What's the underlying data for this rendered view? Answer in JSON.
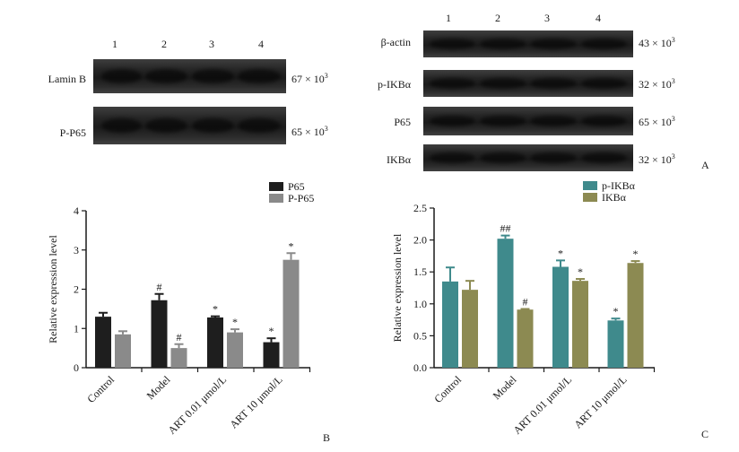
{
  "blot_left": {
    "lanes": [
      "1",
      "2",
      "3",
      "4"
    ],
    "rows": [
      {
        "label": "Lamin B",
        "mw": "67 × 10",
        "exp": "3"
      },
      {
        "label": "P-P65",
        "mw": "65 × 10",
        "exp": "3"
      }
    ]
  },
  "blot_right": {
    "lanes": [
      "1",
      "2",
      "3",
      "4"
    ],
    "rows": [
      {
        "label": "β-actin",
        "mw": "43 × 10",
        "exp": "3"
      },
      {
        "label": "p-IKBα",
        "mw": "32 × 10",
        "exp": "3"
      },
      {
        "label": "P65",
        "mw": "65 × 10",
        "exp": "3"
      },
      {
        "label": "IKBα",
        "mw": "32 × 10",
        "exp": "3"
      }
    ],
    "panel_letter": "A"
  },
  "colors": {
    "p65": "#1e1e1e",
    "pp65": "#8a8a8a",
    "pikba": "#3f8a8c",
    "ikba": "#8c8a52"
  },
  "chart_data": [
    {
      "type": "bar",
      "panel_letter": "B",
      "ylabel": "Relative expression level",
      "categories": [
        "Control",
        "Model",
        "ART 0.01 μmol/L",
        "ART 10 μmol/L"
      ],
      "ylim": [
        0,
        4
      ],
      "yticks": [
        "0",
        "1",
        "2",
        "3",
        "4"
      ],
      "legend_position": "top-right",
      "series": [
        {
          "name": "P65",
          "values": [
            1.3,
            1.72,
            1.28,
            0.65
          ],
          "errors": [
            0.1,
            0.16,
            0.03,
            0.1
          ],
          "marks": [
            "",
            "#",
            "*",
            "*"
          ]
        },
        {
          "name": "P-P65",
          "values": [
            0.85,
            0.5,
            0.9,
            2.75
          ],
          "errors": [
            0.08,
            0.1,
            0.08,
            0.17
          ],
          "marks": [
            "",
            "#",
            "*",
            "*"
          ]
        }
      ]
    },
    {
      "type": "bar",
      "panel_letter": "C",
      "ylabel": "Relative expression level",
      "categories": [
        "Control",
        "Model",
        "ART 0.01 μmol/L",
        "ART 10 μmol/L"
      ],
      "ylim": [
        0,
        2.5
      ],
      "yticks": [
        "0.0",
        "0.5",
        "1.0",
        "1.5",
        "2.0",
        "2.5"
      ],
      "legend_position": "top-left",
      "series": [
        {
          "name": "p-IKBα",
          "values": [
            1.35,
            2.02,
            1.58,
            0.74
          ],
          "errors": [
            0.22,
            0.05,
            0.1,
            0.03
          ],
          "marks": [
            "",
            "##",
            "*",
            "*"
          ]
        },
        {
          "name": "IKBα",
          "values": [
            1.22,
            0.91,
            1.36,
            1.64
          ],
          "errors": [
            0.14,
            0.01,
            0.03,
            0.03
          ],
          "marks": [
            "",
            "#",
            "*",
            "*"
          ]
        }
      ]
    }
  ]
}
